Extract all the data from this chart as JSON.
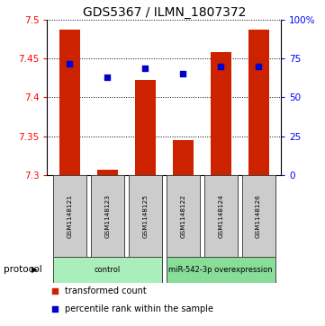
{
  "title": "GDS5367 / ILMN_1807372",
  "samples": [
    "GSM1148121",
    "GSM1148123",
    "GSM1148125",
    "GSM1148122",
    "GSM1148124",
    "GSM1148126"
  ],
  "bar_tops": [
    7.487,
    7.307,
    7.422,
    7.345,
    7.458,
    7.487
  ],
  "bar_base": 7.3,
  "blue_vals": [
    7.443,
    7.426,
    7.438,
    7.43,
    7.44,
    7.44
  ],
  "ylim_left": [
    7.3,
    7.5
  ],
  "yticks_left": [
    7.3,
    7.35,
    7.4,
    7.45,
    7.5
  ],
  "ytick_labels_left": [
    "7.3",
    "7.35",
    "7.4",
    "7.45",
    "7.5"
  ],
  "ylim_right": [
    0,
    100
  ],
  "yticks_right": [
    0,
    25,
    50,
    75,
    100
  ],
  "ytick_labels_right": [
    "0",
    "25",
    "50",
    "75",
    "100%"
  ],
  "bar_color": "#cc2200",
  "dot_color": "#0000cc",
  "title_fontsize": 10,
  "protocols": [
    "control",
    "control",
    "control",
    "miR-542-3p overexpression",
    "miR-542-3p overexpression",
    "miR-542-3p overexpression"
  ],
  "protocol_colors": {
    "control": "#aaeebb",
    "miR-542-3p overexpression": "#88dd99"
  },
  "protocol_label": "protocol",
  "legend_label1": "transformed count",
  "legend_label2": "percentile rank within the sample"
}
